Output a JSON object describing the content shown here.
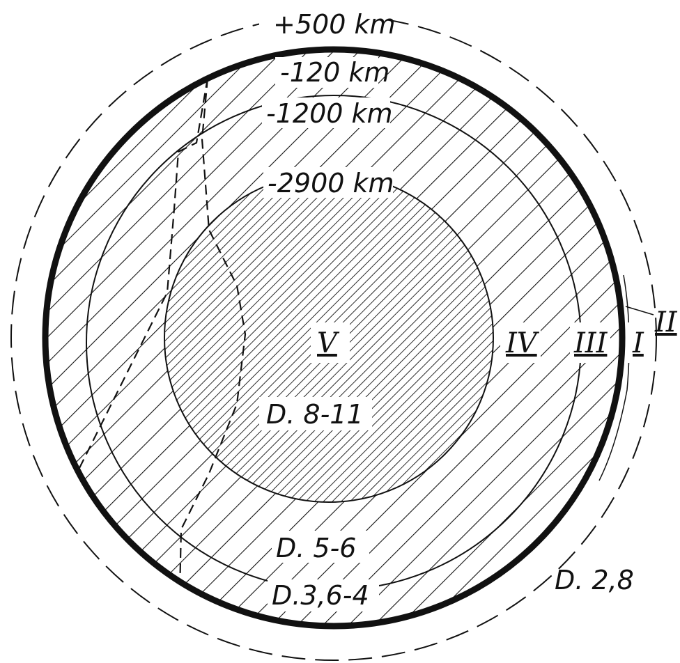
{
  "diagram": {
    "title": "",
    "boundaries": [
      {
        "id": "atmosphere",
        "label": "+500 km",
        "style": "dashed"
      },
      {
        "id": "crust",
        "label": "-120 km",
        "style": "thick"
      },
      {
        "id": "mantle-upper",
        "label": "-1200 km",
        "style": "thin"
      },
      {
        "id": "core",
        "label": "-2900 km",
        "style": "thin"
      }
    ],
    "zones": [
      {
        "numeral": "V",
        "density": "D. 8-11"
      },
      {
        "numeral": "IV",
        "density": "D. 5-6"
      },
      {
        "numeral": "III",
        "density": "D.3,6-4"
      },
      {
        "numeral": "I",
        "density": ""
      },
      {
        "numeral": "II",
        "density": "D. 2,8"
      }
    ],
    "colors": {
      "ink": "#111111",
      "paper": "#ffffff"
    }
  }
}
